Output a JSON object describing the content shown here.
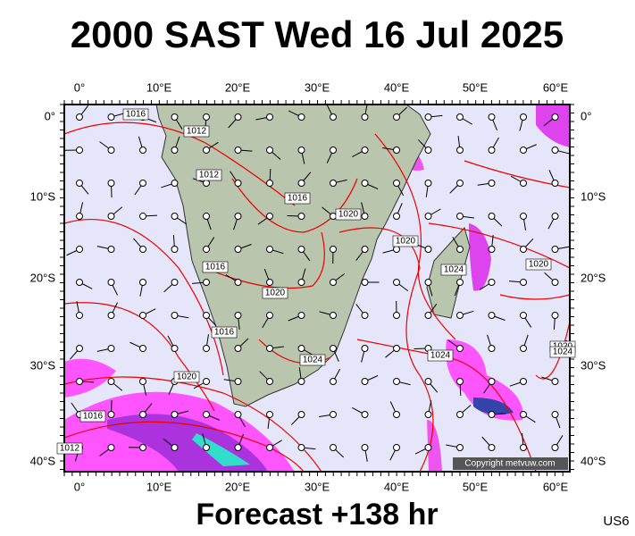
{
  "header": {
    "title": "2000 SAST Wed 16 Jul 2025"
  },
  "map": {
    "lon_labels": [
      "0°",
      "10°E",
      "20°E",
      "30°E",
      "40°E",
      "50°E",
      "60°E"
    ],
    "lat_labels": [
      "0°",
      "10°S",
      "20°S",
      "30°S",
      "40°S"
    ],
    "isobar_labels": [
      "1016",
      "1012",
      "1012",
      "1016",
      "1020",
      "1020",
      "1016",
      "1020",
      "1024",
      "1020",
      "1016",
      "1020",
      "1024",
      "1024",
      "1020",
      "1016",
      "1012",
      "1024"
    ],
    "copyright": "Copyright metvuw.com"
  },
  "footer": {
    "forecast": "Forecast +138 hr",
    "code": "US6"
  }
}
